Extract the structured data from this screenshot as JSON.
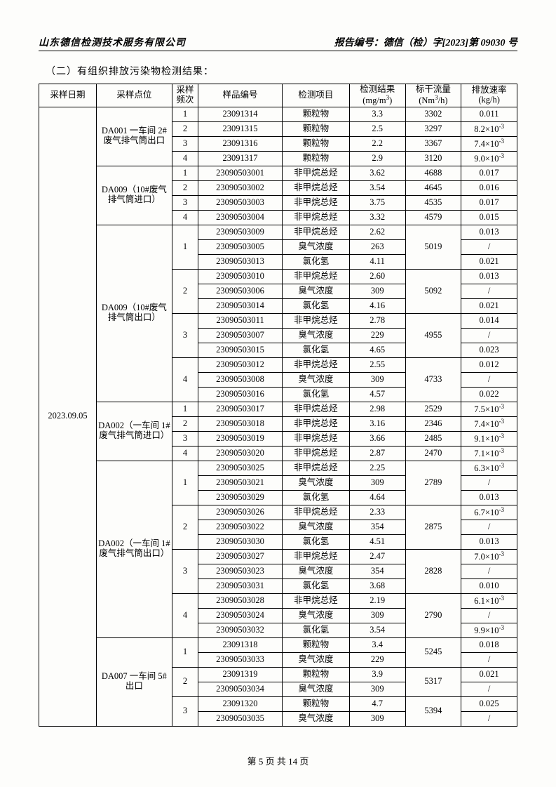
{
  "header": {
    "company": "山东德信检测技术服务有限公司",
    "report_no": "报告编号：德信（检）字[2023]第 09030 号"
  },
  "section_title": "（二）有组织排放污染物检测结果：",
  "columns": {
    "date": "采样日期",
    "point": "采样点位",
    "freq": "采样频次",
    "sample": "样品编号",
    "item": "检测项目",
    "result": "检测结果(mg/m³)",
    "flow": "标干流量(Nm³/h)",
    "rate": "排放速率(kg/h)"
  },
  "sampling_date": "2023.09.05",
  "groups": [
    {
      "point": "DA001 一车间 2#废气排气筒出口",
      "rows": [
        {
          "freq": "1",
          "sample": "23091314",
          "item": "颗粒物",
          "result": "3.3",
          "flow": "3302",
          "rate": "0.011"
        },
        {
          "freq": "2",
          "sample": "23091315",
          "item": "颗粒物",
          "result": "2.5",
          "flow": "3297",
          "rate": "8.2×10⁻³"
        },
        {
          "freq": "3",
          "sample": "23091316",
          "item": "颗粒物",
          "result": "2.2",
          "flow": "3367",
          "rate": "7.4×10⁻³"
        },
        {
          "freq": "4",
          "sample": "23091317",
          "item": "颗粒物",
          "result": "2.9",
          "flow": "3120",
          "rate": "9.0×10⁻³"
        }
      ]
    },
    {
      "point": "DA009（10#废气排气筒进口）",
      "rows": [
        {
          "freq": "1",
          "sample": "23090503001",
          "item": "非甲烷总烃",
          "result": "3.62",
          "flow": "4688",
          "rate": "0.017"
        },
        {
          "freq": "2",
          "sample": "23090503002",
          "item": "非甲烷总烃",
          "result": "3.54",
          "flow": "4645",
          "rate": "0.016"
        },
        {
          "freq": "3",
          "sample": "23090503003",
          "item": "非甲烷总烃",
          "result": "3.75",
          "flow": "4535",
          "rate": "0.017"
        },
        {
          "freq": "4",
          "sample": "23090503004",
          "item": "非甲烷总烃",
          "result": "3.32",
          "flow": "4579",
          "rate": "0.015"
        }
      ]
    },
    {
      "point": "DA009（10#废气排气筒出口）",
      "subgroups": [
        {
          "freq": "1",
          "flow": "5019",
          "rows": [
            {
              "sample": "23090503009",
              "item": "非甲烷总烃",
              "result": "2.62",
              "rate": "0.013"
            },
            {
              "sample": "23090503005",
              "item": "臭气浓度",
              "result": "263",
              "rate": "/"
            },
            {
              "sample": "23090503013",
              "item": "氯化氢",
              "result": "4.11",
              "rate": "0.021"
            }
          ]
        },
        {
          "freq": "2",
          "flow": "5092",
          "rows": [
            {
              "sample": "23090503010",
              "item": "非甲烷总烃",
              "result": "2.60",
              "rate": "0.013"
            },
            {
              "sample": "23090503006",
              "item": "臭气浓度",
              "result": "309",
              "rate": "/"
            },
            {
              "sample": "23090503014",
              "item": "氯化氢",
              "result": "4.16",
              "rate": "0.021"
            }
          ]
        },
        {
          "freq": "3",
          "flow": "4955",
          "rows": [
            {
              "sample": "23090503011",
              "item": "非甲烷总烃",
              "result": "2.78",
              "rate": "0.014"
            },
            {
              "sample": "23090503007",
              "item": "臭气浓度",
              "result": "229",
              "rate": "/"
            },
            {
              "sample": "23090503015",
              "item": "氯化氢",
              "result": "4.65",
              "rate": "0.023"
            }
          ]
        },
        {
          "freq": "4",
          "flow": "4733",
          "rows": [
            {
              "sample": "23090503012",
              "item": "非甲烷总烃",
              "result": "2.55",
              "rate": "0.012"
            },
            {
              "sample": "23090503008",
              "item": "臭气浓度",
              "result": "309",
              "rate": "/"
            },
            {
              "sample": "23090503016",
              "item": "氯化氢",
              "result": "4.57",
              "rate": "0.022"
            }
          ]
        }
      ]
    },
    {
      "point": "DA002（一车间 1#废气排气筒进口）",
      "rows": [
        {
          "freq": "1",
          "sample": "23090503017",
          "item": "非甲烷总烃",
          "result": "2.98",
          "flow": "2529",
          "rate": "7.5×10⁻³"
        },
        {
          "freq": "2",
          "sample": "23090503018",
          "item": "非甲烷总烃",
          "result": "3.16",
          "flow": "2346",
          "rate": "7.4×10⁻³"
        },
        {
          "freq": "3",
          "sample": "23090503019",
          "item": "非甲烷总烃",
          "result": "3.66",
          "flow": "2485",
          "rate": "9.1×10⁻³"
        },
        {
          "freq": "4",
          "sample": "23090503020",
          "item": "非甲烷总烃",
          "result": "2.87",
          "flow": "2470",
          "rate": "7.1×10⁻³"
        }
      ]
    },
    {
      "point": "DA002（一车间 1#废气排气筒出口）",
      "subgroups": [
        {
          "freq": "1",
          "flow": "2789",
          "rows": [
            {
              "sample": "23090503025",
              "item": "非甲烷总烃",
              "result": "2.25",
              "rate": "6.3×10⁻³"
            },
            {
              "sample": "23090503021",
              "item": "臭气浓度",
              "result": "309",
              "rate": "/"
            },
            {
              "sample": "23090503029",
              "item": "氯化氢",
              "result": "4.64",
              "rate": "0.013"
            }
          ]
        },
        {
          "freq": "2",
          "flow": "2875",
          "rows": [
            {
              "sample": "23090503026",
              "item": "非甲烷总烃",
              "result": "2.33",
              "rate": "6.7×10⁻³"
            },
            {
              "sample": "23090503022",
              "item": "臭气浓度",
              "result": "354",
              "rate": "/"
            },
            {
              "sample": "23090503030",
              "item": "氯化氢",
              "result": "4.51",
              "rate": "0.013"
            }
          ]
        },
        {
          "freq": "3",
          "flow": "2828",
          "rows": [
            {
              "sample": "23090503027",
              "item": "非甲烷总烃",
              "result": "2.47",
              "rate": "7.0×10⁻³"
            },
            {
              "sample": "23090503023",
              "item": "臭气浓度",
              "result": "354",
              "rate": "/"
            },
            {
              "sample": "23090503031",
              "item": "氯化氢",
              "result": "3.68",
              "rate": "0.010"
            }
          ]
        },
        {
          "freq": "4",
          "flow": "2790",
          "rows": [
            {
              "sample": "23090503028",
              "item": "非甲烷总烃",
              "result": "2.19",
              "rate": "6.1×10⁻³"
            },
            {
              "sample": "23090503024",
              "item": "臭气浓度",
              "result": "309",
              "rate": "/"
            },
            {
              "sample": "23090503032",
              "item": "氯化氢",
              "result": "3.54",
              "rate": "9.9×10⁻³"
            }
          ]
        }
      ]
    },
    {
      "point": "DA007 一车间 5#出口",
      "subgroups": [
        {
          "freq": "1",
          "flow": "5245",
          "rows": [
            {
              "sample": "23091318",
              "item": "颗粒物",
              "result": "3.4",
              "rate": "0.018"
            },
            {
              "sample": "23090503033",
              "item": "臭气浓度",
              "result": "229",
              "rate": "/"
            }
          ]
        },
        {
          "freq": "2",
          "flow": "5317",
          "rows": [
            {
              "sample": "23091319",
              "item": "颗粒物",
              "result": "3.9",
              "rate": "0.021"
            },
            {
              "sample": "23090503034",
              "item": "臭气浓度",
              "result": "309",
              "rate": "/"
            }
          ]
        },
        {
          "freq": "3",
          "flow": "5394",
          "rows": [
            {
              "sample": "23091320",
              "item": "颗粒物",
              "result": "4.7",
              "rate": "0.025"
            },
            {
              "sample": "23090503035",
              "item": "臭气浓度",
              "result": "309",
              "rate": "/"
            }
          ]
        }
      ]
    }
  ],
  "footer": "第 5 页 共 14 页"
}
